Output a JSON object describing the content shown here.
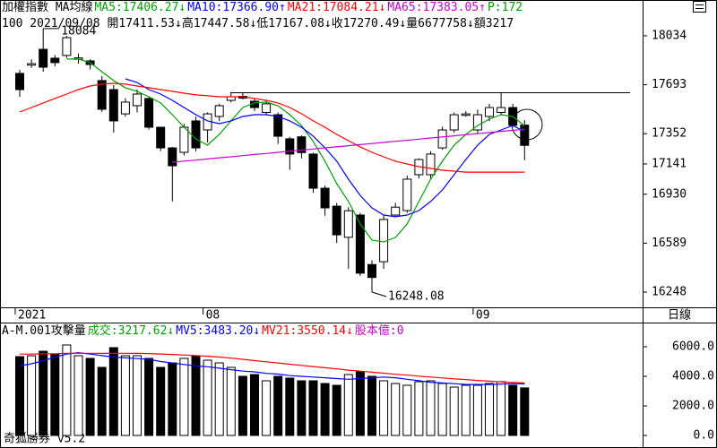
{
  "chart_data": [
    {
      "type": "candlestick",
      "header": [
        {
          "text": "加權指數 MA均線",
          "color": "#000000"
        },
        {
          "text": "MA5:17406.27↓",
          "color": "#00a000"
        },
        {
          "text": "MA10:17366.90↑",
          "color": "#0000ff"
        },
        {
          "text": "MA21:17084.21↓",
          "color": "#ff0000"
        },
        {
          "text": "MA65:17383.05↑",
          "color": "#cc00cc"
        },
        {
          "text": "P:172",
          "color": "#00a000"
        }
      ],
      "info": "100 2021/09/08 開17411.53↓高17447.58↓低17167.08↓收17270.49↓量6677758↓額3217",
      "period": "日線",
      "categories": [
        "2021",
        null,
        null,
        null,
        null,
        null,
        null,
        null,
        null,
        null,
        null,
        null,
        null,
        null,
        null,
        null,
        "08",
        null,
        null,
        null,
        null,
        null,
        null,
        null,
        null,
        null,
        null,
        null,
        null,
        null,
        null,
        null,
        null,
        null,
        null,
        null,
        null,
        null,
        null,
        "09",
        null,
        null,
        null,
        null
      ],
      "open": [
        17772,
        17830,
        17940,
        17878,
        17897,
        17870,
        17859,
        17722,
        17659,
        17490,
        17547,
        17597,
        17397,
        17253,
        17222,
        17441,
        17378,
        17472,
        17584,
        17612,
        17578,
        17500,
        17484,
        17316,
        17330,
        17210,
        16972,
        16847,
        16630,
        16785,
        16440,
        16460,
        16785,
        16816,
        17066,
        17066,
        17253,
        17378,
        17480,
        17378,
        17472,
        17500,
        17534,
        17411.53
      ],
      "high": [
        17797,
        17870,
        18084,
        17900,
        18034.19,
        17910,
        17870,
        17753,
        17690,
        17600,
        17660,
        17610,
        17400,
        17260,
        17420,
        17470,
        17500,
        17560,
        17640,
        17640,
        17600,
        17580,
        17500,
        17330,
        17340,
        17220,
        16990,
        16870,
        16840,
        16800,
        16470,
        16785,
        16870,
        17060,
        17180,
        17230,
        17400,
        17500,
        17510,
        17520,
        17560,
        17640,
        17560,
        17447.58
      ],
      "low": [
        17609,
        17810,
        17784,
        17820,
        17880,
        17840,
        17800,
        17503,
        17360,
        17470,
        17500,
        17380,
        17230,
        16880,
        17200,
        17230,
        17290,
        17440,
        17570,
        17590,
        17510,
        17480,
        17280,
        17100,
        17180,
        16940,
        16780,
        16590,
        16410,
        16360,
        16248.08,
        16410,
        16770,
        16800,
        17040,
        17040,
        17240,
        17360,
        17470,
        17350,
        17440,
        17480,
        17400,
        17167.08
      ],
      "close": [
        17659,
        17840,
        17815,
        17847,
        18021,
        17880,
        17834,
        17522,
        17441,
        17572,
        17628,
        17397,
        17253,
        17128,
        17397,
        17253,
        17490,
        17547,
        17609,
        17600,
        17534,
        17560,
        17334,
        17210,
        17220,
        16972,
        16835,
        16647,
        16815,
        16380,
        16350,
        16754,
        16840,
        17035,
        17172,
        17210,
        17378,
        17484,
        17490,
        17484,
        17534,
        17534,
        17410,
        17270.49
      ],
      "series": [
        {
          "name": "MA5",
          "color": "#00a000",
          "values": [
            null,
            null,
            null,
            null,
            17872,
            17872,
            17847,
            17784,
            17722,
            17672,
            17647,
            17609,
            17566,
            17484,
            17397,
            17316,
            17272,
            17347,
            17441,
            17534,
            17566,
            17572,
            17547,
            17484,
            17409,
            17297,
            17160,
            17004,
            16879,
            16723,
            16610,
            16598,
            16629,
            16723,
            16879,
            17035,
            17160,
            17272,
            17347,
            17409,
            17453,
            17484,
            17472,
            17406.27
          ]
        },
        {
          "name": "MA10",
          "color": "#0000ff",
          "values": [
            null,
            null,
            null,
            null,
            null,
            null,
            null,
            null,
            null,
            17734,
            17709,
            17659,
            17628,
            17584,
            17534,
            17484,
            17441,
            17422,
            17441,
            17472,
            17484,
            17484,
            17472,
            17441,
            17397,
            17335,
            17253,
            17160,
            17035,
            16922,
            16835,
            16785,
            16773,
            16785,
            16816,
            16879,
            16960,
            17066,
            17172,
            17272,
            17347,
            17378,
            17409,
            17366.9
          ]
        },
        {
          "name": "MA21",
          "color": "#ff0000",
          "values": [
            17503,
            17534,
            17566,
            17597,
            17628,
            17659,
            17684,
            17697,
            17703,
            17697,
            17684,
            17672,
            17659,
            17647,
            17634,
            17622,
            17616,
            17609,
            17609,
            17609,
            17597,
            17584,
            17566,
            17534,
            17491,
            17441,
            17397,
            17347,
            17303,
            17260,
            17222,
            17191,
            17160,
            17141,
            17122,
            17110,
            17097,
            17091,
            17084,
            17084,
            17084,
            17084,
            17084,
            17084.21
          ]
        },
        {
          "name": "MA65",
          "color": "#cc00cc",
          "values": [
            null,
            null,
            null,
            null,
            null,
            null,
            null,
            null,
            null,
            null,
            null,
            null,
            null,
            17153,
            17161,
            17168,
            17176,
            17184,
            17191,
            17199,
            17207,
            17214,
            17222,
            17230,
            17237,
            17245,
            17253,
            17260,
            17268,
            17276,
            17283,
            17291,
            17299,
            17306,
            17314,
            17322,
            17329,
            17337,
            17345,
            17352,
            17360,
            17368,
            17375,
            17383.05
          ]
        }
      ],
      "ylim": [
        16142,
        18171
      ],
      "yticks": [
        18034,
        17693,
        17352,
        17141,
        16930,
        16589,
        16248
      ]
    },
    {
      "type": "bar",
      "header": [
        {
          "text": "A-M.001攻擊量",
          "color": "#000000"
        },
        {
          "text": "成交:3217.62↓",
          "color": "#00a000"
        },
        {
          "text": "MV5:3483.20↓",
          "color": "#0000ff"
        },
        {
          "text": "MV21:3550.14↓",
          "color": "#ff0000"
        },
        {
          "text": "股本億:0",
          "color": "#cc00cc"
        }
      ],
      "footer": "奇狐勝券 v5.2",
      "values": [
        5333,
        5393,
        5696,
        5515,
        6121,
        5393,
        5212,
        4606,
        5939,
        5393,
        5393,
        5212,
        4606,
        4909,
        5212,
        5393,
        5090,
        4909,
        4606,
        4000,
        4121,
        3697,
        4000,
        3878,
        3697,
        3697,
        3515,
        3394,
        4121,
        4303,
        4000,
        3697,
        3515,
        3394,
        3636,
        3697,
        3515,
        3272,
        3394,
        3394,
        3515,
        3636,
        3394,
        3217.62
      ],
      "series": [
        {
          "name": "MV5",
          "color": "#0000ff",
          "values": [
            4700,
            4850,
            5050,
            5300,
            5500,
            5600,
            5500,
            5400,
            5300,
            5250,
            5200,
            5150,
            5000,
            4900,
            4800,
            4700,
            4650,
            4550,
            4450,
            4350,
            4300,
            4200,
            4150,
            4050,
            4000,
            3950,
            3900,
            3850,
            3800,
            3850,
            3900,
            3950,
            3900,
            3800,
            3700,
            3600,
            3550,
            3500,
            3450,
            3450,
            3450,
            3480,
            3500,
            3483.2
          ]
        },
        {
          "name": "MV21",
          "color": "#ff0000",
          "values": [
            5500,
            5500,
            5520,
            5530,
            5560,
            5560,
            5560,
            5550,
            5560,
            5560,
            5550,
            5540,
            5510,
            5480,
            5440,
            5400,
            5360,
            5300,
            5230,
            5150,
            5060,
            4980,
            4900,
            4820,
            4740,
            4660,
            4580,
            4500,
            4420,
            4350,
            4280,
            4210,
            4140,
            4080,
            4010,
            3950,
            3890,
            3830,
            3780,
            3720,
            3670,
            3620,
            3580,
            3550.14
          ]
        }
      ],
      "ylim": [
        -667,
        7515
      ],
      "yticks": [
        {
          "value": 6000,
          "label": "6000.0"
        },
        {
          "value": 4000,
          "label": "4000.0"
        },
        {
          "value": 2000,
          "label": "2000.0"
        },
        {
          "value": 0,
          "label": "0.0"
        }
      ]
    }
  ]
}
